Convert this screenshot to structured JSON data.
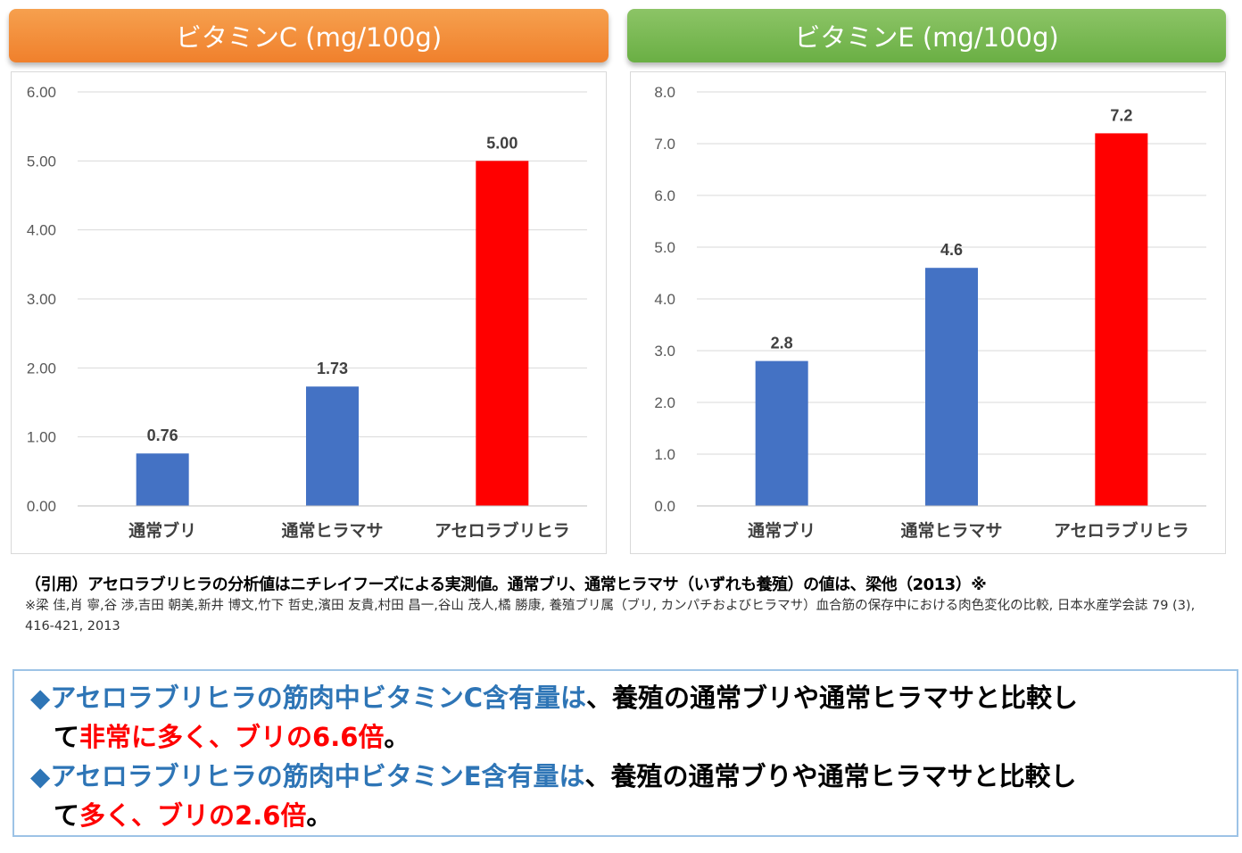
{
  "colors": {
    "orange_banner": "#f0802c",
    "green_banner": "#6aaf44",
    "bar_blue": "#4472c4",
    "bar_red": "#ff0000",
    "highlight_blue": "#2e75b6",
    "highlight_red": "#ff0000"
  },
  "chart_data": [
    {
      "type": "bar",
      "title": "ビタミンC (mg/100g)",
      "categories": [
        "通常ブリ",
        "通常ヒラマサ",
        "アセロラブリヒラ"
      ],
      "values": [
        0.76,
        1.73,
        5.0
      ],
      "value_labels": [
        "0.76",
        "1.73",
        "5.00"
      ],
      "bar_colors": [
        "#4472c4",
        "#4472c4",
        "#ff0000"
      ],
      "ylim": [
        0,
        6
      ],
      "yticks": [
        0,
        1,
        2,
        3,
        4,
        5,
        6
      ],
      "ytick_labels": [
        "0.00",
        "1.00",
        "2.00",
        "3.00",
        "4.00",
        "5.00",
        "6.00"
      ],
      "grid": true,
      "xlabel": "",
      "ylabel": ""
    },
    {
      "type": "bar",
      "title": "ビタミンE (mg/100g)",
      "categories": [
        "通常ブリ",
        "通常ヒラマサ",
        "アセロラブリヒラ"
      ],
      "values": [
        2.8,
        4.6,
        7.2
      ],
      "value_labels": [
        "2.8",
        "4.6",
        "7.2"
      ],
      "bar_colors": [
        "#4472c4",
        "#4472c4",
        "#ff0000"
      ],
      "ylim": [
        0,
        8
      ],
      "yticks": [
        0,
        1,
        2,
        3,
        4,
        5,
        6,
        7,
        8
      ],
      "ytick_labels": [
        "0.0",
        "1.0",
        "2.0",
        "3.0",
        "4.0",
        "5.0",
        "6.0",
        "7.0",
        "8.0"
      ],
      "grid": true,
      "xlabel": "",
      "ylabel": ""
    }
  ],
  "citation": {
    "main": "（引用）アセロラブリヒラの分析値はニチレイフーズによる実測値。通常ブリ、通常ヒラマサ（いずれも養殖）の値は、梁他（2013）※",
    "reference": "※梁 佳,肖 寧,谷 渉,吉田 朝美,新井 博文,竹下 哲史,濱田 友貴,村田 昌一,谷山 茂人,橘 勝康, 養殖ブリ属（ブリ, カンパチおよびヒラマサ）血合筋の保存中における肉色変化の比較, 日本水産学会誌 79 (3), 416-421, 2013"
  },
  "summary": {
    "line1": {
      "bullet": "◆",
      "highlight": "アセロラブリヒラの筋肉中ビタミンC含有量は",
      "text": "、養殖の通常ブリや通常ヒラマサと比較し"
    },
    "line2": {
      "text_start": "て",
      "emphasis": "非常に多く、ブリの6.6倍",
      "text_end": "。"
    },
    "line3": {
      "bullet": "◆",
      "highlight": "アセロラブリヒラの筋肉中ビタミンE含有量は",
      "text": "、養殖の通常ブりや通常ヒラマサと比較し"
    },
    "line4": {
      "text_start": "て",
      "emphasis": "多く、ブリの2.6倍",
      "text_end": "。"
    }
  }
}
